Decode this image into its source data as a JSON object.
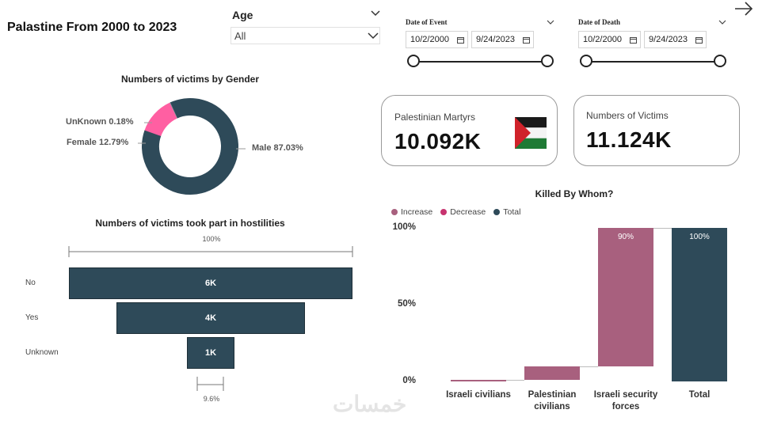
{
  "report": {
    "title": "Palastine From 2000 to 2023"
  },
  "age_slicer": {
    "label": "Age",
    "value": "All"
  },
  "date_of_event": {
    "label": "Date of Event",
    "start": "10/2/2000",
    "end": "9/24/2023"
  },
  "date_of_death": {
    "label": "Date of Death",
    "start": "10/2/2000",
    "end": "9/24/2023"
  },
  "kpis": {
    "martyrs": {
      "label": "Palestinian Martyrs",
      "value": "10.092K"
    },
    "victims": {
      "label": "Numbers of Victims",
      "value": "11.124K"
    }
  },
  "colors": {
    "navy": "#2e4a59",
    "pink": "#ff5fa2",
    "increase": "#a8607e",
    "decrease": "#c7336f",
    "total": "#2e4a59"
  },
  "chart_data": [
    {
      "type": "pie",
      "title": "Numbers of victims by Gender",
      "slices": [
        {
          "label": "Male",
          "value": 87.03,
          "display": "Male 87.03%"
        },
        {
          "label": "Female",
          "value": 12.79,
          "display": "Female 12.79%"
        },
        {
          "label": "UnKnown",
          "value": 0.18,
          "display": "UnKnown 0.18%"
        }
      ]
    },
    {
      "type": "bar",
      "title": "Numbers of victims took part in hostilities",
      "categories": [
        "No",
        "Yes",
        "Unknown"
      ],
      "values": [
        6,
        4,
        1
      ],
      "value_labels": [
        "6K",
        "4K",
        "1K"
      ],
      "top_percent": "100%",
      "bottom_percent": "9.6%"
    },
    {
      "type": "bar",
      "title": "Killed By Whom?",
      "legend": [
        "Increase",
        "Decrease",
        "Total"
      ],
      "categories": [
        "Israeli civilians",
        "Palestinian civilians",
        "Israeli security forces",
        "Total"
      ],
      "category_lines": [
        [
          "Israeli civilians"
        ],
        [
          "Palestinian",
          "civilians"
        ],
        [
          "Israeli security",
          "forces"
        ],
        [
          "Total"
        ]
      ],
      "values": [
        1,
        9,
        90,
        100
      ],
      "value_labels": [
        "",
        "",
        "90%",
        "100%"
      ],
      "kinds": [
        "increase",
        "increase",
        "increase",
        "total"
      ],
      "ylim": [
        0,
        100
      ],
      "y_ticks": [
        "0%",
        "50%",
        "100%"
      ]
    }
  ]
}
